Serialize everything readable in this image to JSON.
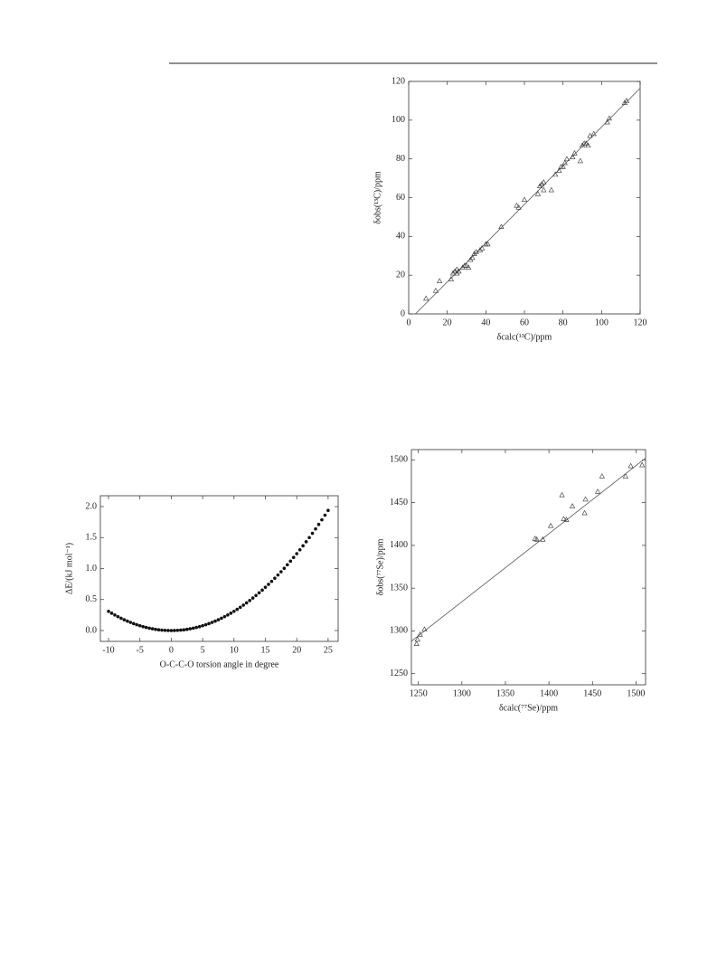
{
  "chart_data": [
    {
      "type": "scatter",
      "marker": "triangle",
      "color": "#333333",
      "x_label": "δcalc(¹³C)/ppm",
      "y_label": "δobs(¹³C)/ppm",
      "x": [
        9,
        14,
        16,
        22,
        23,
        24,
        25,
        25,
        26,
        28,
        29,
        30,
        31,
        32,
        33,
        34,
        35,
        37,
        38,
        40,
        41,
        48,
        56,
        57,
        60,
        67,
        68,
        69,
        70,
        70,
        74,
        76,
        78,
        79,
        80,
        81,
        82,
        85,
        86,
        89,
        90,
        91,
        92,
        93,
        94,
        96,
        103,
        104,
        112,
        113
      ],
      "series": [
        {
          "values": [
            8,
            12,
            17,
            18,
            21,
            22,
            21,
            23,
            22,
            24,
            25,
            25,
            24,
            28,
            29,
            31,
            32,
            33,
            34,
            36,
            36,
            45,
            56,
            55,
            59,
            62,
            66,
            67,
            64,
            68,
            64,
            72,
            74,
            76,
            76,
            78,
            80,
            81,
            83,
            79,
            87,
            88,
            88,
            87,
            92,
            93,
            99,
            101,
            109,
            110
          ]
        }
      ],
      "fit": {
        "x": [
          3.5,
          120
        ],
        "values": [
          0,
          116.5
        ]
      },
      "xlim": [
        0,
        120
      ],
      "ylim": [
        0,
        120
      ],
      "xticks": [
        0,
        20,
        40,
        60,
        80,
        100,
        120
      ],
      "yticks": [
        0,
        20,
        40,
        60,
        80,
        100,
        120
      ]
    },
    {
      "type": "scatter",
      "marker": "dot",
      "color": "#111111",
      "x_label": "O-C-C-O torsion angle in degree",
      "y_label": "ΔE/(kJ mol⁻¹)",
      "x": [
        -10,
        -9.5,
        -9,
        -8.5,
        -8,
        -7.5,
        -7,
        -6.5,
        -6,
        -5.5,
        -5,
        -4.5,
        -4,
        -3.5,
        -3,
        -2.5,
        -2,
        -1.5,
        -1,
        -0.5,
        0,
        0.5,
        1,
        1.5,
        2,
        2.5,
        3,
        3.5,
        4,
        4.5,
        5,
        5.5,
        6,
        6.5,
        7,
        7.5,
        8,
        8.5,
        9,
        9.5,
        10,
        10.5,
        11,
        11.5,
        12,
        12.5,
        13,
        13.5,
        14,
        14.5,
        15,
        15.5,
        16,
        16.5,
        17,
        17.5,
        18,
        18.5,
        19,
        19.5,
        20,
        20.5,
        21,
        21.5,
        22,
        22.5,
        23,
        23.5,
        24,
        24.5,
        25
      ],
      "series": [
        {
          "values": [
            0.31,
            0.28,
            0.251,
            0.224,
            0.198,
            0.174,
            0.152,
            0.131,
            0.112,
            0.094,
            0.078,
            0.063,
            0.05,
            0.038,
            0.028,
            0.019,
            0.012,
            0.007,
            0.003,
            0.001,
            0,
            0.001,
            0.003,
            0.007,
            0.012,
            0.019,
            0.028,
            0.038,
            0.05,
            0.063,
            0.078,
            0.094,
            0.112,
            0.131,
            0.152,
            0.174,
            0.198,
            0.224,
            0.251,
            0.28,
            0.31,
            0.342,
            0.375,
            0.41,
            0.446,
            0.484,
            0.524,
            0.565,
            0.608,
            0.652,
            0.698,
            0.745,
            0.794,
            0.844,
            0.896,
            0.949,
            1.004,
            1.061,
            1.119,
            1.179,
            1.24,
            1.303,
            1.367,
            1.433,
            1.5,
            1.569,
            1.64,
            1.712,
            1.786,
            1.861,
            1.938
          ]
        }
      ],
      "xlim": [
        -11.3,
        26.6
      ],
      "ylim": [
        -0.175,
        2.175
      ],
      "xticks": [
        -10,
        -5,
        0,
        5,
        10,
        15,
        20,
        25
      ],
      "yticks": [
        {
          "value": 0,
          "label": "0.0"
        },
        {
          "value": 0.5,
          "label": "0.5"
        },
        {
          "value": 1,
          "label": "1.0"
        },
        {
          "value": 1.5,
          "label": "1.5"
        },
        {
          "value": 2,
          "label": "2.0"
        }
      ]
    },
    {
      "type": "scatter",
      "marker": "triangle",
      "color": "#333333",
      "x_label": "δcalc(⁷⁷Se)/ppm",
      "y_label": "δobs(⁷⁷Se)/ppm",
      "x": [
        1248,
        1249,
        1252,
        1257,
        1384,
        1386,
        1393,
        1402,
        1415,
        1417,
        1420,
        1427,
        1441,
        1442,
        1456,
        1461,
        1488,
        1494,
        1507
      ],
      "series": [
        {
          "values": [
            1285,
            1290,
            1296,
            1302,
            1408,
            1407,
            1407,
            1423,
            1459,
            1431,
            1430,
            1446,
            1438,
            1454,
            1463,
            1481,
            1481,
            1493,
            1494
          ]
        }
      ],
      "fit": {
        "x": [
          1242,
          1511
        ],
        "values": [
          1288,
          1502
        ]
      },
      "xlim": [
        1242,
        1511
      ],
      "ylim": [
        1237,
        1512
      ],
      "xticks": [
        1250,
        1300,
        1350,
        1400,
        1450,
        1500
      ],
      "yticks": [
        1250,
        1300,
        1350,
        1400,
        1450,
        1500
      ]
    }
  ]
}
